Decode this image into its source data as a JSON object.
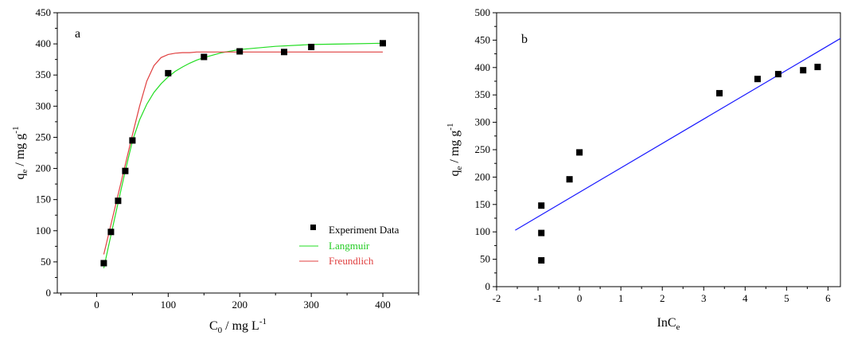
{
  "chart_data": [
    {
      "type": "scatter",
      "panel_label": "a",
      "xlabel": "C0 / mg L-1",
      "xlabel_main": "C",
      "xlabel_sub": "0",
      "xlabel_rest": " / mg L",
      "xlabel_sup": "-1",
      "ylabel": "qe / mg g-1",
      "ylabel_main": "q",
      "ylabel_sub": "e",
      "ylabel_rest": " / mg g",
      "ylabel_sup": "-1",
      "xlim": [
        -55,
        450
      ],
      "ylim": [
        0,
        450
      ],
      "xticks": [
        0,
        100,
        200,
        300,
        400
      ],
      "yticks": [
        0,
        50,
        100,
        150,
        200,
        250,
        300,
        350,
        400,
        450
      ],
      "legend_position": "bottom-right",
      "series": [
        {
          "name": "Experiment Data",
          "kind": "scatter",
          "color": "#000000",
          "x": [
            10,
            20,
            30,
            40,
            50,
            100,
            150,
            200,
            262,
            300,
            400
          ],
          "y": [
            48,
            98,
            148,
            196,
            245,
            353,
            379,
            388,
            387,
            395,
            401
          ]
        },
        {
          "name": "Langmuir",
          "kind": "line",
          "color": "#22dd22",
          "x": [
            10,
            20,
            30,
            40,
            50,
            60,
            70,
            80,
            90,
            100,
            110,
            120,
            130,
            140,
            150,
            175,
            200,
            250,
            300,
            350,
            400
          ],
          "y": [
            40,
            93,
            145,
            196,
            244,
            278,
            303,
            322,
            336,
            347,
            356,
            363,
            369,
            374,
            378,
            386,
            391,
            396,
            399,
            400,
            401
          ]
        },
        {
          "name": "Freundlich",
          "kind": "line",
          "color": "#e04040",
          "x": [
            10,
            20,
            30,
            40,
            50,
            60,
            70,
            80,
            90,
            100,
            110,
            120,
            130,
            140,
            150,
            200,
            250,
            300,
            350,
            400
          ],
          "y": [
            62,
            110,
            158,
            206,
            254,
            300,
            340,
            365,
            378,
            383,
            385,
            386,
            386,
            387,
            387,
            387,
            387,
            387,
            387,
            387
          ]
        }
      ]
    },
    {
      "type": "scatter",
      "panel_label": "b",
      "xlabel": "InCe",
      "xlabel_main": "InC",
      "xlabel_sub": "e",
      "ylabel": "qe / mg g-1",
      "ylabel_main": "q",
      "ylabel_sub": "e",
      "ylabel_rest": " / mg g",
      "ylabel_sup": "-1",
      "xlim": [
        -2,
        6.3
      ],
      "ylim": [
        0,
        500
      ],
      "xticks": [
        -2,
        -1,
        0,
        1,
        2,
        3,
        4,
        5,
        6
      ],
      "yticks": [
        0,
        50,
        100,
        150,
        200,
        250,
        300,
        350,
        400,
        450,
        500
      ],
      "series": [
        {
          "kind": "scatter",
          "color": "#000000",
          "x": [
            -0.92,
            -0.92,
            -0.92,
            -0.24,
            0.0,
            3.38,
            4.3,
            4.8,
            5.4,
            5.75
          ],
          "y": [
            48,
            98,
            148,
            196,
            245,
            353,
            379,
            388,
            395,
            401
          ]
        },
        {
          "kind": "line",
          "color": "#1a1aff",
          "x": [
            -1.55,
            6.3
          ],
          "y": [
            103,
            453
          ]
        }
      ]
    }
  ]
}
